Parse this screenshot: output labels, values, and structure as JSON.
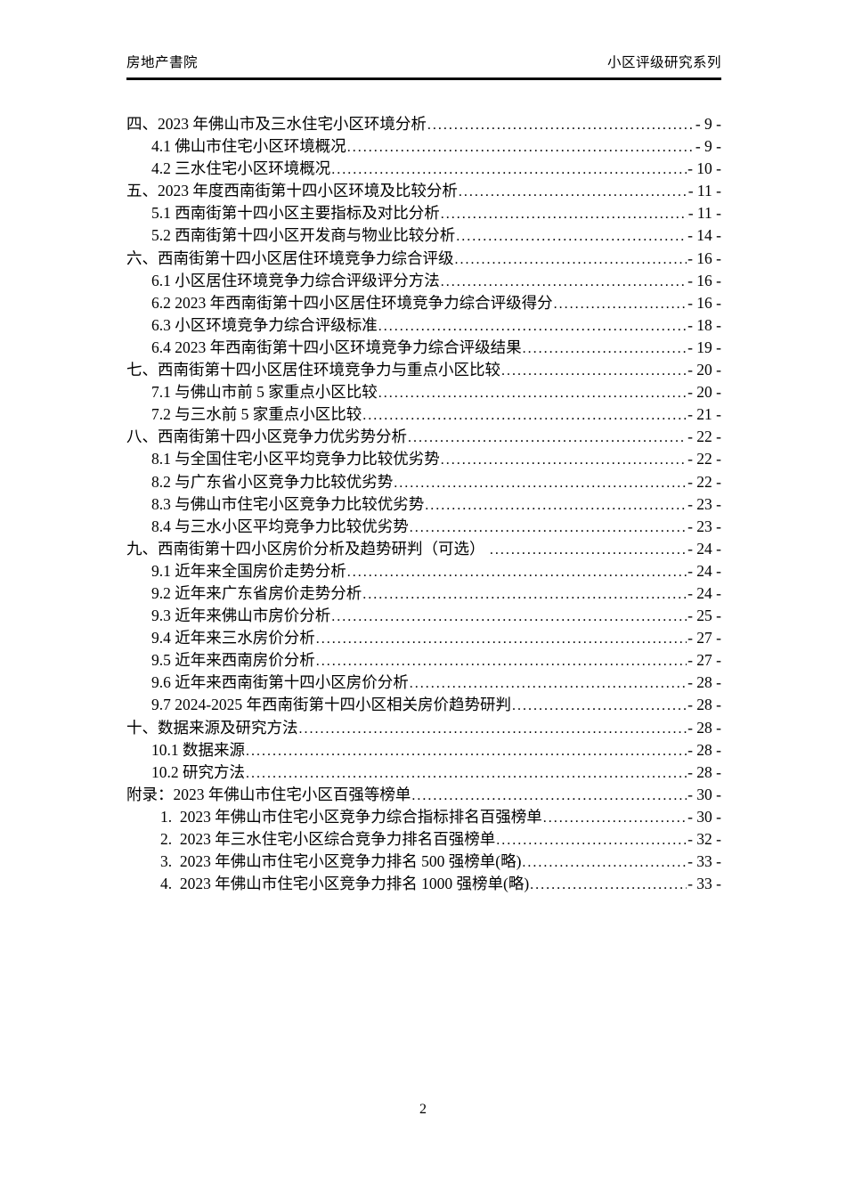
{
  "header": {
    "left": "房地产書院",
    "right": "小区评级研究系列"
  },
  "toc": {
    "entries": [
      {
        "level": 0,
        "title": "四、2023 年佛山市及三水住宅小区环境分析",
        "page": "- 9 -"
      },
      {
        "level": 1,
        "title": "4.1 佛山市住宅小区环境概况",
        "page": "- 9 -"
      },
      {
        "level": 1,
        "title": "4.2 三水住宅小区环境概况",
        "page": "- 10 -"
      },
      {
        "level": 0,
        "title": "五、2023 年度西南街第十四小区环境及比较分析",
        "page": "- 11 -"
      },
      {
        "level": 1,
        "title": "5.1 西南街第十四小区主要指标及对比分析",
        "page": "- 11 -"
      },
      {
        "level": 1,
        "title": "5.2 西南街第十四小区开发商与物业比较分析",
        "page": "- 14 -"
      },
      {
        "level": 0,
        "title": "六、西南街第十四小区居住环境竞争力综合评级",
        "page": "- 16 -"
      },
      {
        "level": 1,
        "title": "6.1 小区居住环境竞争力综合评级评分方法",
        "page": "- 16 -"
      },
      {
        "level": 1,
        "title": "6.2 2023 年西南街第十四小区居住环境竞争力综合评级得分",
        "page": "- 16 -"
      },
      {
        "level": 1,
        "title": "6.3 小区环境竞争力综合评级标准",
        "page": "- 18 -"
      },
      {
        "level": 1,
        "title": "6.4 2023 年西南街第十四小区环境竞争力综合评级结果",
        "page": "- 19 -"
      },
      {
        "level": 0,
        "title": "七、西南街第十四小区居住环境竞争力与重点小区比较",
        "page": "- 20 -"
      },
      {
        "level": 1,
        "title": "7.1 与佛山市前 5 家重点小区比较",
        "page": "- 20 -"
      },
      {
        "level": 1,
        "title": "7.2 与三水前 5 家重点小区比较",
        "page": "- 21 -"
      },
      {
        "level": 0,
        "title": "八、西南街第十四小区竞争力优劣势分析",
        "page": "- 22 -"
      },
      {
        "level": 1,
        "title": "8.1 与全国住宅小区平均竞争力比较优劣势",
        "page": "- 22 -"
      },
      {
        "level": 1,
        "title": "8.2 与广东省小区竞争力比较优劣势",
        "page": "- 22 -"
      },
      {
        "level": 1,
        "title": "8.3 与佛山市住宅小区竞争力比较优劣势",
        "page": "- 23 -"
      },
      {
        "level": 1,
        "title": "8.4 与三水小区平均竞争力比较优劣势",
        "page": "- 23 -"
      },
      {
        "level": 0,
        "title": "九、西南街第十四小区房价分析及趋势研判（可选） ",
        "page": "- 24 -"
      },
      {
        "level": 1,
        "title": "9.1 近年来全国房价走势分析",
        "page": "- 24 -"
      },
      {
        "level": 1,
        "title": "9.2 近年来广东省房价走势分析",
        "page": "- 24 -"
      },
      {
        "level": 1,
        "title": "9.3 近年来佛山市房价分析",
        "page": "- 25 -"
      },
      {
        "level": 1,
        "title": "9.4 近年来三水房价分析",
        "page": "- 27 -"
      },
      {
        "level": 1,
        "title": "9.5 近年来西南房价分析",
        "page": "- 27 -"
      },
      {
        "level": 1,
        "title": "9.6 近年来西南街第十四小区房价分析",
        "page": "- 28 -"
      },
      {
        "level": 1,
        "title": "9.7 2024-2025 年西南街第十四小区相关房价趋势研判",
        "page": "- 28 -"
      },
      {
        "level": 0,
        "title": "十、数据来源及研究方法",
        "page": "- 28 -"
      },
      {
        "level": 1,
        "title": "10.1 数据来源",
        "page": "- 28 -"
      },
      {
        "level": 1,
        "title": "10.2 研究方法",
        "page": "- 28 -"
      },
      {
        "level": 0,
        "title": "附录：2023 年佛山市住宅小区百强等榜单",
        "page": "- 30 -"
      },
      {
        "level": 2,
        "title": "1.  2023 年佛山市住宅小区竞争力综合指标排名百强榜单",
        "page": "- 30 -"
      },
      {
        "level": 2,
        "title": "2.  2023 年三水住宅小区综合竞争力排名百强榜单",
        "page": "- 32 -"
      },
      {
        "level": 2,
        "title": "3.  2023 年佛山市住宅小区竞争力排名 500 强榜单(略)",
        "page": "- 33 -"
      },
      {
        "level": 2,
        "title": "4.  2023 年佛山市住宅小区竞争力排名 1000 强榜单(略)",
        "page": "- 33 -"
      }
    ]
  },
  "footer": {
    "page_number": "2"
  }
}
